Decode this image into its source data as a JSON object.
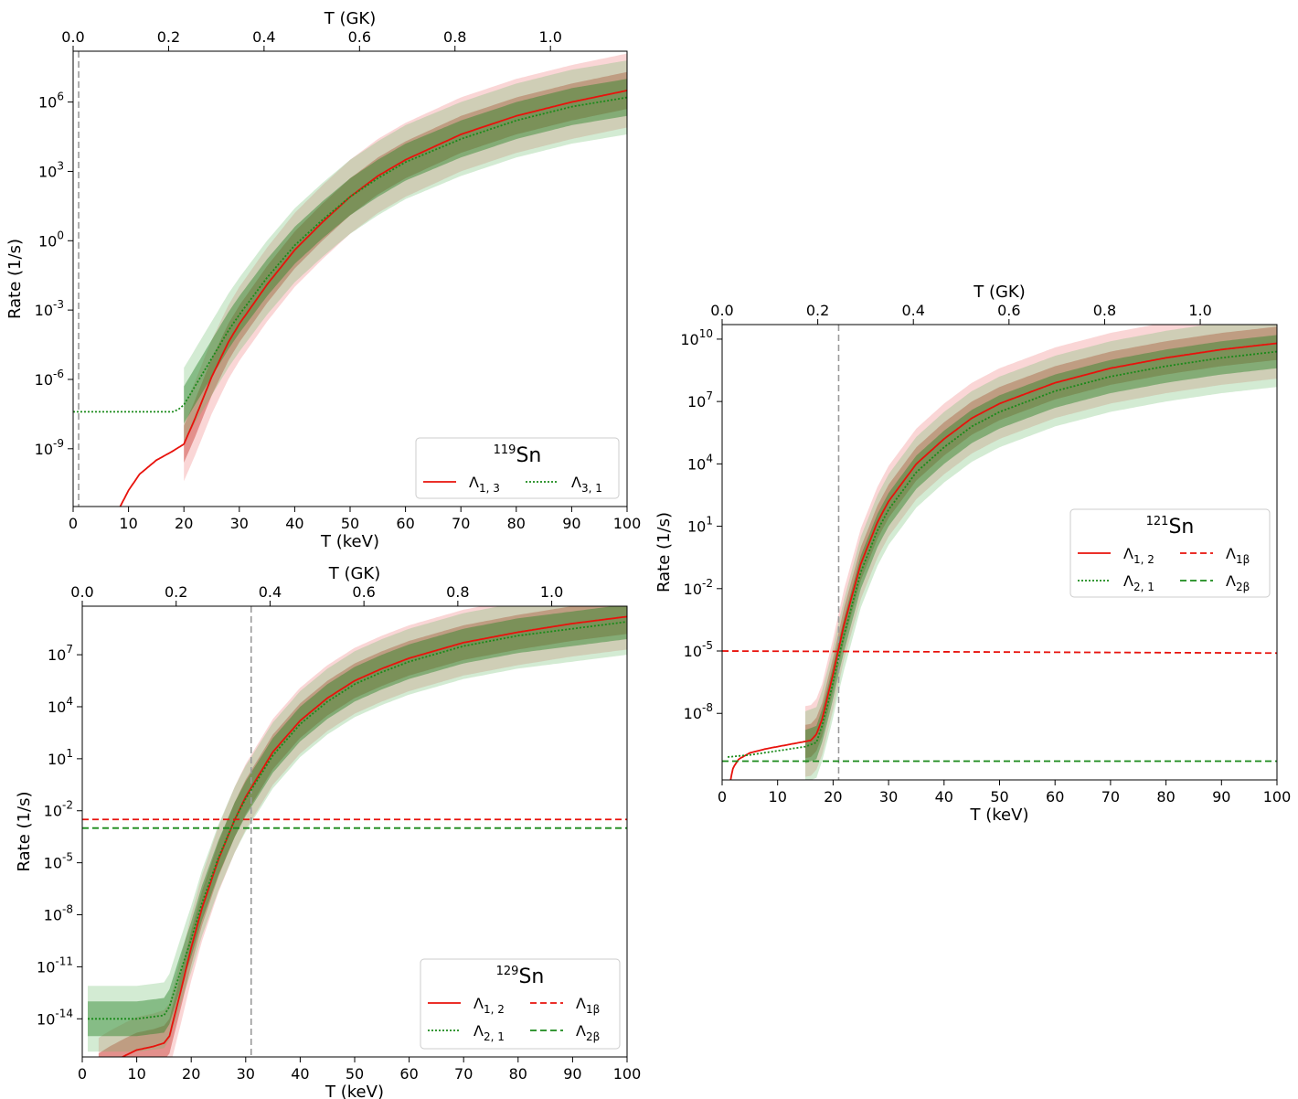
{
  "chart_data": [
    {
      "type": "line",
      "id": "sn119",
      "legend_title": {
        "sup": "119",
        "base": "Sn"
      },
      "xlabel": "T (keV)",
      "x2label": "T (GK)",
      "ylabel": "Rate (1/s)",
      "xlim": [
        0,
        100
      ],
      "ylim_log10": [
        -11.5,
        8.2
      ],
      "x_ticks": [
        "0",
        "10",
        "20",
        "30",
        "40",
        "50",
        "60",
        "70",
        "80",
        "90",
        "100"
      ],
      "x2_ticks": [
        "0.0",
        "0.2",
        "0.4",
        "0.6",
        "0.8",
        "1.0"
      ],
      "y_ticks": [
        {
          "base": "10",
          "exp": "6",
          "v": 6
        },
        {
          "base": "10",
          "exp": "3",
          "v": 3
        },
        {
          "base": "10",
          "exp": "0",
          "v": 0
        },
        {
          "base": "10",
          "exp": "-3",
          "v": -3
        },
        {
          "base": "10",
          "exp": "-6",
          "v": -6
        },
        {
          "base": "10",
          "exp": "-9",
          "v": -9
        }
      ],
      "vline_keV": 1,
      "legend_position": "lower-right",
      "series": [
        {
          "name": "Λ1,3",
          "label_base": "Λ",
          "label_sub": "1, 3",
          "style": "solid",
          "color": "#e8120c",
          "x": [
            8.5,
            10,
            12,
            15,
            18,
            20,
            22,
            25,
            28,
            30,
            35,
            40,
            45,
            50,
            55,
            60,
            70,
            80,
            90,
            100
          ],
          "log10_values": [
            -11.5,
            -10.8,
            -10.1,
            -9.5,
            -9.1,
            -8.8,
            -7.7,
            -5.9,
            -4.4,
            -3.6,
            -1.9,
            -0.4,
            0.8,
            1.9,
            2.8,
            3.5,
            4.6,
            5.4,
            6.0,
            6.5
          ],
          "band_inner": 0.8,
          "band_outer": 1.6,
          "band_from_x": 20
        },
        {
          "name": "Λ3,1",
          "label_base": "Λ",
          "label_sub": "3, 1",
          "style": "dotted",
          "color": "#1a8a1a",
          "x": [
            0,
            10,
            18,
            19,
            20,
            22,
            25,
            28,
            30,
            35,
            40,
            45,
            50,
            55,
            60,
            70,
            80,
            90,
            100
          ],
          "log10_values": [
            -7.4,
            -7.4,
            -7.4,
            -7.3,
            -7.1,
            -6.3,
            -5.1,
            -3.9,
            -3.2,
            -1.6,
            -0.2,
            0.9,
            1.9,
            2.7,
            3.4,
            4.4,
            5.2,
            5.8,
            6.2
          ],
          "band_inner": 0.8,
          "band_outer": 1.6,
          "band_from_x": 20
        }
      ]
    },
    {
      "type": "line",
      "id": "sn129",
      "legend_title": {
        "sup": "129",
        "base": "Sn"
      },
      "xlabel": "T (keV)",
      "x2label": "T (GK)",
      "ylabel": "Rate (1/s)",
      "xlim": [
        0,
        100
      ],
      "ylim_log10": [
        -16.2,
        9.8
      ],
      "x_ticks": [
        "0",
        "10",
        "20",
        "30",
        "40",
        "50",
        "60",
        "70",
        "80",
        "90",
        "100"
      ],
      "x2_ticks": [
        "0.0",
        "0.2",
        "0.4",
        "0.6",
        "0.8",
        "1.0"
      ],
      "y_ticks": [
        {
          "base": "10",
          "exp": "7",
          "v": 7
        },
        {
          "base": "10",
          "exp": "4",
          "v": 4
        },
        {
          "base": "10",
          "exp": "1",
          "v": 1
        },
        {
          "base": "10",
          "exp": "-2",
          "v": -2
        },
        {
          "base": "10",
          "exp": "-5",
          "v": -5
        },
        {
          "base": "10",
          "exp": "-8",
          "v": -8
        },
        {
          "base": "10",
          "exp": "-11",
          "v": -11
        },
        {
          "base": "10",
          "exp": "-14",
          "v": -14
        }
      ],
      "vline_keV": 31,
      "legend_position": "lower-right",
      "series": [
        {
          "name": "Λ1,2",
          "label_base": "Λ",
          "label_sub": "1, 2",
          "style": "solid",
          "color": "#e8120c",
          "x": [
            3,
            5,
            8,
            10,
            13,
            15,
            16,
            18,
            20,
            22,
            25,
            28,
            30,
            35,
            40,
            45,
            50,
            55,
            60,
            70,
            80,
            90,
            100
          ],
          "log10_values": [
            -17,
            -16.6,
            -16.1,
            -15.8,
            -15.6,
            -15.4,
            -15.0,
            -12.5,
            -9.9,
            -7.6,
            -4.8,
            -2.5,
            -1.2,
            1.4,
            3.2,
            4.5,
            5.5,
            6.2,
            6.8,
            7.7,
            8.3,
            8.8,
            9.2
          ],
          "band_inner": 1.0,
          "band_outer": 1.9,
          "band_from_x": 1
        },
        {
          "name": "Λ2,1",
          "label_base": "Λ",
          "label_sub": "2, 1",
          "style": "dotted",
          "color": "#1a8a1a",
          "x": [
            1,
            10,
            15,
            16,
            18,
            20,
            22,
            25,
            28,
            30,
            35,
            40,
            45,
            50,
            55,
            60,
            70,
            80,
            90,
            100
          ],
          "log10_values": [
            -14.0,
            -14.0,
            -13.8,
            -13.3,
            -11.3,
            -9.4,
            -7.3,
            -4.7,
            -2.5,
            -1.3,
            1.2,
            3.0,
            4.3,
            5.3,
            6.0,
            6.6,
            7.5,
            8.1,
            8.5,
            8.9
          ],
          "band_inner": 1.0,
          "band_outer": 1.9,
          "band_from_x": 1
        },
        {
          "name": "Λ1β",
          "label_base": "Λ",
          "label_sub": "1β",
          "style": "dashed",
          "color": "#e8120c",
          "x": [
            0,
            100
          ],
          "log10_values": [
            -2.5,
            -2.5
          ]
        },
        {
          "name": "Λ2β",
          "label_base": "Λ",
          "label_sub": "2β",
          "style": "dashed",
          "color": "#1a8a1a",
          "x": [
            0,
            100
          ],
          "log10_values": [
            -3.0,
            -3.0
          ]
        }
      ]
    },
    {
      "type": "line",
      "id": "sn121",
      "legend_title": {
        "sup": "121",
        "base": "Sn"
      },
      "xlabel": "T (keV)",
      "x2label": "T (GK)",
      "ylabel": "Rate (1/s)",
      "xlim": [
        0,
        100
      ],
      "ylim_log10": [
        -11.2,
        10.7
      ],
      "x_ticks": [
        "0",
        "10",
        "20",
        "30",
        "40",
        "50",
        "60",
        "70",
        "80",
        "90",
        "100"
      ],
      "x2_ticks": [
        "0.0",
        "0.2",
        "0.4",
        "0.6",
        "0.8",
        "1.0"
      ],
      "y_ticks": [
        {
          "base": "10",
          "exp": "10",
          "v": 10
        },
        {
          "base": "10",
          "exp": "7",
          "v": 7
        },
        {
          "base": "10",
          "exp": "4",
          "v": 4
        },
        {
          "base": "10",
          "exp": "1",
          "v": 1
        },
        {
          "base": "10",
          "exp": "-2",
          "v": -2
        },
        {
          "base": "10",
          "exp": "-5",
          "v": -5
        },
        {
          "base": "10",
          "exp": "-8",
          "v": -8
        }
      ],
      "vline_keV": 21,
      "legend_position": "center-right",
      "series": [
        {
          "name": "Λ1,2",
          "label_base": "Λ",
          "label_sub": "1, 2",
          "style": "solid",
          "color": "#e8120c",
          "x": [
            1.2,
            1.5,
            2,
            3,
            5,
            8,
            12,
            16,
            17,
            18,
            19,
            20,
            21,
            22,
            25,
            28,
            30,
            35,
            40,
            45,
            50,
            60,
            70,
            80,
            90,
            100
          ],
          "log10_values": [
            -12,
            -11.2,
            -10.6,
            -10.2,
            -9.9,
            -9.7,
            -9.5,
            -9.3,
            -9.0,
            -8.3,
            -7.2,
            -6.1,
            -4.9,
            -3.7,
            -0.8,
            1.2,
            2.2,
            4.0,
            5.2,
            6.2,
            6.9,
            7.9,
            8.6,
            9.1,
            9.5,
            9.8
          ],
          "band_inner": 0.8,
          "band_outer": 1.7,
          "band_from_x": 15
        },
        {
          "name": "Λ2,1",
          "label_base": "Λ",
          "label_sub": "2, 1",
          "style": "dotted",
          "color": "#1a8a1a",
          "x": [
            1,
            5,
            10,
            15,
            17,
            18,
            19,
            20,
            21,
            22,
            25,
            28,
            30,
            35,
            40,
            45,
            50,
            60,
            70,
            80,
            90,
            100
          ],
          "log10_values": [
            -10.1,
            -10.0,
            -9.8,
            -9.6,
            -9.4,
            -8.6,
            -7.6,
            -6.5,
            -5.3,
            -4.2,
            -1.2,
            0.8,
            1.8,
            3.6,
            4.8,
            5.8,
            6.5,
            7.5,
            8.2,
            8.7,
            9.1,
            9.4
          ],
          "band_inner": 0.8,
          "band_outer": 1.7,
          "band_from_x": 15
        },
        {
          "name": "Λ1β",
          "label_base": "Λ",
          "label_sub": "1β",
          "style": "dashed",
          "color": "#e8120c",
          "x": [
            0,
            100
          ],
          "log10_values": [
            -5.0,
            -5.1
          ]
        },
        {
          "name": "Λ2β",
          "label_base": "Λ",
          "label_sub": "2β",
          "style": "dashed",
          "color": "#1a8a1a",
          "x": [
            0,
            100
          ],
          "log10_values": [
            -10.3,
            -10.3
          ]
        }
      ]
    }
  ]
}
